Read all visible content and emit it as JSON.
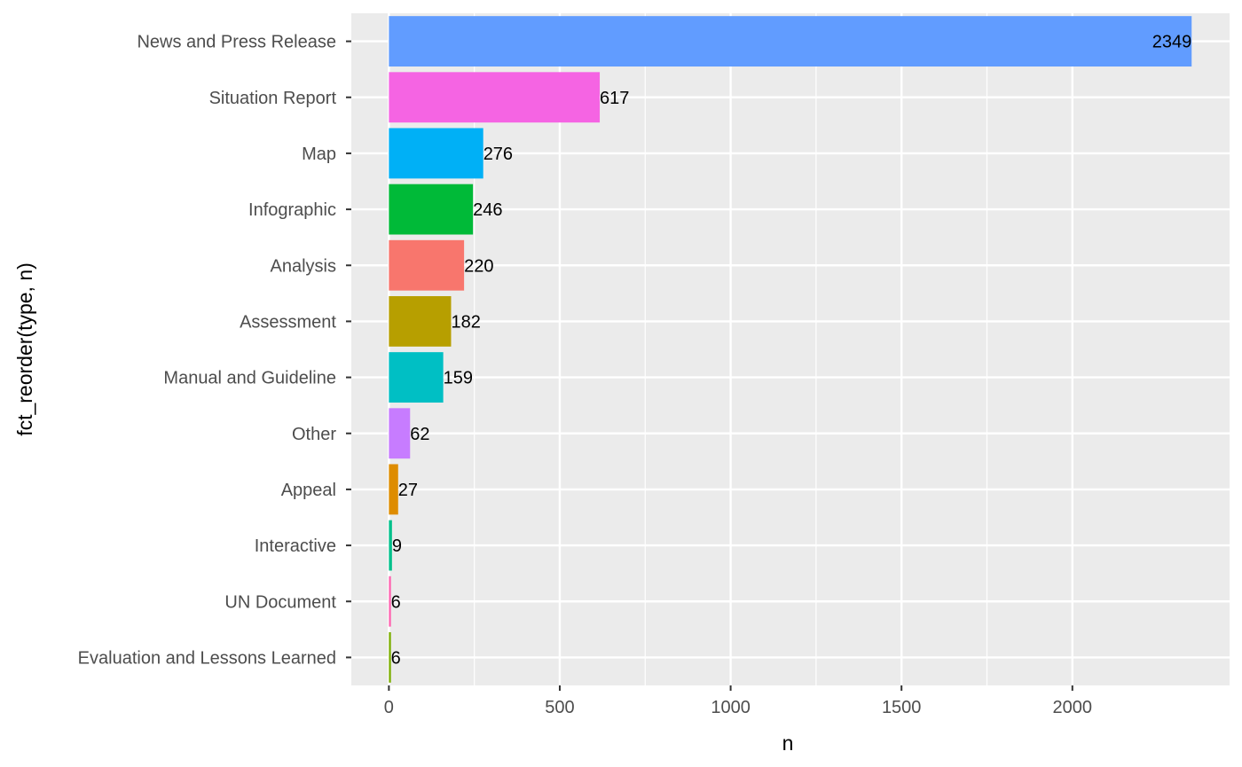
{
  "chart_data": {
    "type": "bar",
    "orientation": "horizontal",
    "title": "",
    "xlabel": "n",
    "ylabel": "fct_reorder(type, n)",
    "xlim": [
      -110,
      2460
    ],
    "x_ticks": [
      0,
      500,
      1000,
      1500,
      2000
    ],
    "grid": true,
    "legend": "none",
    "panel_background": "#ebebeb",
    "grid_color": "#ffffff",
    "categories": [
      "News and Press Release",
      "Situation Report",
      "Map",
      "Infographic",
      "Analysis",
      "Assessment",
      "Manual and Guideline",
      "Other",
      "Appeal",
      "Interactive",
      "UN Document",
      "Evaluation and Lessons Learned"
    ],
    "values": [
      2349,
      617,
      276,
      246,
      220,
      182,
      159,
      62,
      27,
      9,
      6,
      6
    ],
    "colors": [
      "#619cff",
      "#f564e3",
      "#00b0f6",
      "#00ba38",
      "#f8766d",
      "#b79f00",
      "#00bfc4",
      "#c77cff",
      "#de8c00",
      "#00c08b",
      "#ff64b0",
      "#7cae00"
    ]
  }
}
